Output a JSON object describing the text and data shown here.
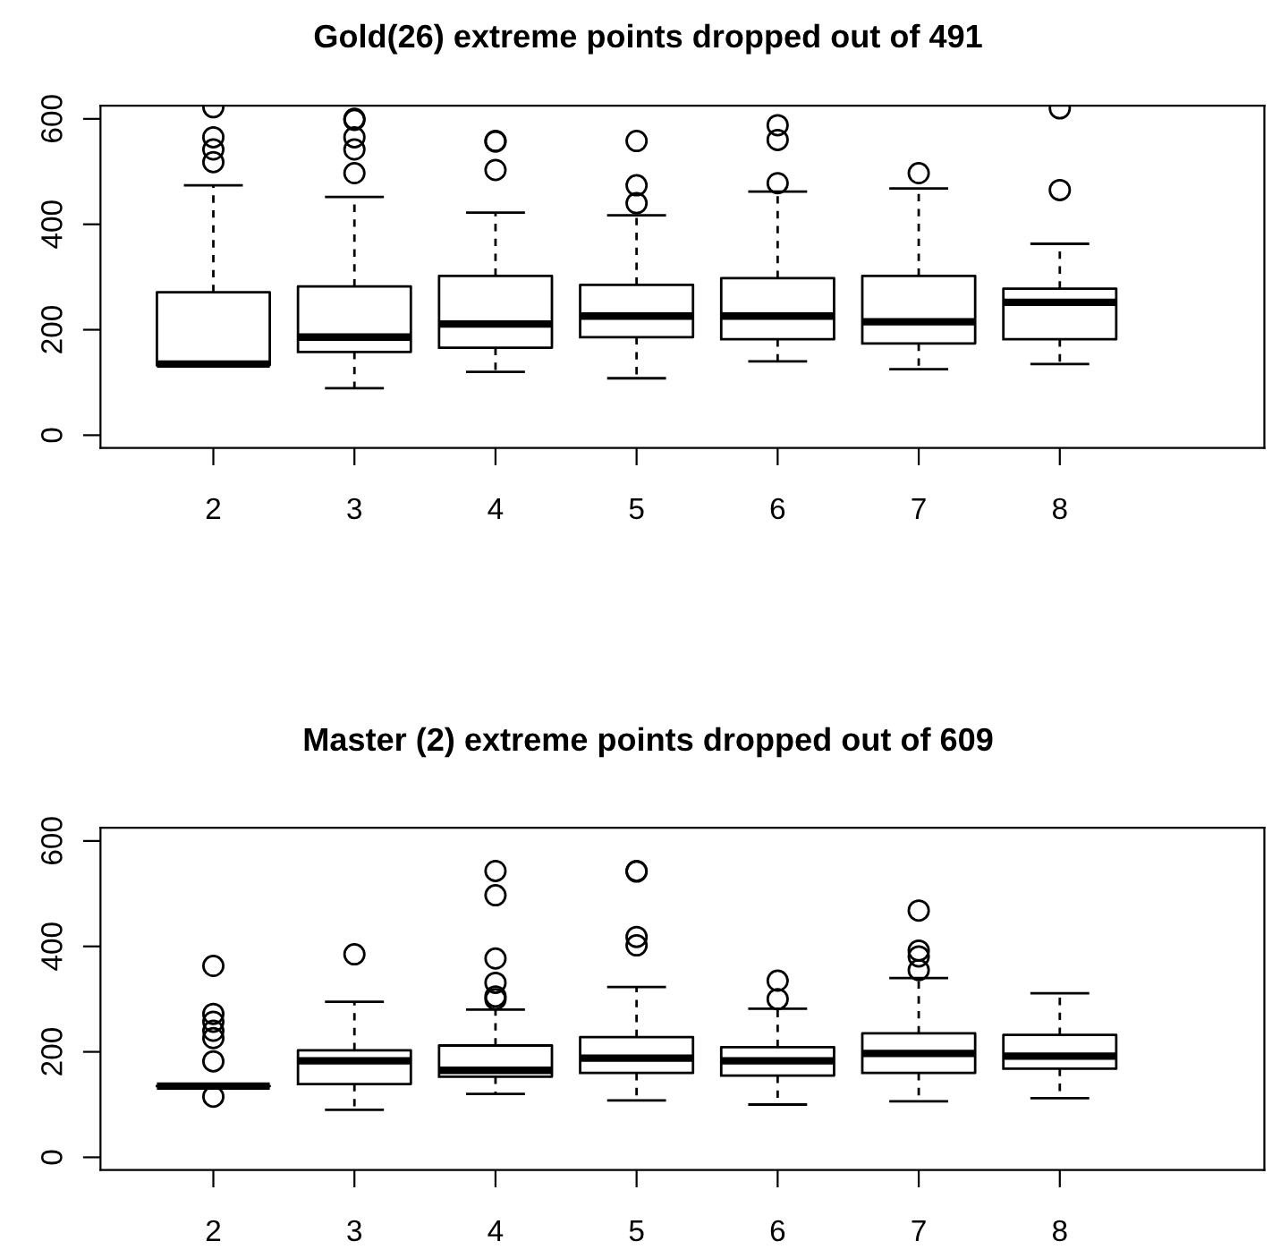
{
  "chart_data": [
    {
      "type": "box",
      "title": "Gold(26) extreme points dropped out of 491",
      "categories": [
        "2",
        "3",
        "4",
        "5",
        "6",
        "7",
        "8"
      ],
      "ylim": [
        -24,
        625
      ],
      "yticks": [
        0,
        200,
        400,
        600
      ],
      "grid": false,
      "boxes": [
        {
          "low": 132,
          "q1": 133,
          "median": 135,
          "q3": 271,
          "high": 474,
          "outliers": [
            518,
            542,
            565,
            622
          ]
        },
        {
          "low": 89,
          "q1": 158,
          "median": 186,
          "q3": 282,
          "high": 452,
          "outliers": [
            497,
            542,
            565,
            598,
            600
          ]
        },
        {
          "low": 120,
          "q1": 166,
          "median": 211,
          "q3": 302,
          "high": 422,
          "outliers": [
            503,
            557,
            558
          ]
        },
        {
          "low": 108,
          "q1": 186,
          "median": 226,
          "q3": 285,
          "high": 417,
          "outliers": [
            440,
            474,
            558
          ]
        },
        {
          "low": 140,
          "q1": 182,
          "median": 226,
          "q3": 298,
          "high": 462,
          "outliers": [
            478,
            560,
            588
          ]
        },
        {
          "low": 125,
          "q1": 174,
          "median": 215,
          "q3": 302,
          "high": 468,
          "outliers": [
            497
          ]
        },
        {
          "low": 135,
          "q1": 182,
          "median": 252,
          "q3": 278,
          "high": 363,
          "outliers": [
            465,
            620
          ]
        }
      ]
    },
    {
      "type": "box",
      "title": "Master (2) extreme points dropped out of 609",
      "categories": [
        "2",
        "3",
        "4",
        "5",
        "6",
        "7",
        "8"
      ],
      "ylim": [
        -24,
        625
      ],
      "yticks": [
        0,
        200,
        400,
        600
      ],
      "grid": false,
      "boxes": [
        {
          "low": 135,
          "q1": 135,
          "median": 135,
          "q3": 135,
          "high": 135,
          "outliers": [
            115,
            182,
            226,
            240,
            257,
            272,
            363
          ]
        },
        {
          "low": 90,
          "q1": 139,
          "median": 183,
          "q3": 203,
          "high": 295,
          "outliers": [
            385
          ]
        },
        {
          "low": 120,
          "q1": 153,
          "median": 165,
          "q3": 212,
          "high": 280,
          "outliers": [
            300,
            305,
            331,
            377,
            497,
            543
          ]
        },
        {
          "low": 108,
          "q1": 160,
          "median": 188,
          "q3": 228,
          "high": 323,
          "outliers": [
            402,
            418,
            542,
            543
          ]
        },
        {
          "low": 100,
          "q1": 155,
          "median": 183,
          "q3": 209,
          "high": 282,
          "outliers": [
            300,
            335
          ]
        },
        {
          "low": 106,
          "q1": 160,
          "median": 197,
          "q3": 235,
          "high": 340,
          "outliers": [
            355,
            381,
            392,
            468
          ]
        },
        {
          "low": 112,
          "q1": 168,
          "median": 192,
          "q3": 232,
          "high": 311
        }
      ]
    }
  ]
}
